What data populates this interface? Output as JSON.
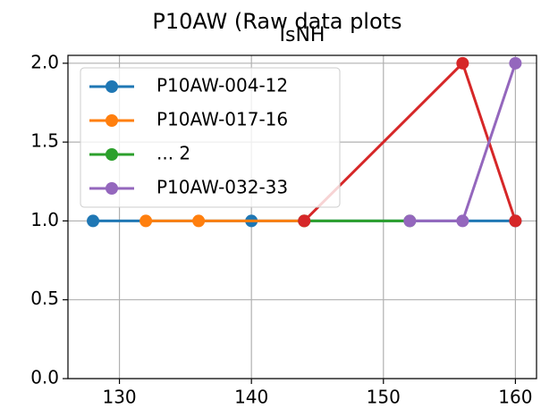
{
  "chart_data": {
    "type": "line",
    "title": "P10AW (Raw data plots",
    "subtitle": "IsNH",
    "xlim": [
      126.1,
      161.6
    ],
    "xticks": [
      130,
      140,
      150,
      160
    ],
    "ylim": [
      0,
      2.05
    ],
    "yticks": [
      {
        "value": 0,
        "label": "0.0"
      },
      {
        "value": 0.5,
        "label": "0.5"
      },
      {
        "value": 1,
        "label": "1.0"
      },
      {
        "value": 1.5,
        "label": "1.5"
      },
      {
        "value": 2,
        "label": "2.0"
      }
    ],
    "grid": true,
    "legend": "upper left",
    "series": [
      {
        "name": "P10AW-004-12",
        "color": "#1f77b4",
        "x": [
          128,
          140,
          160
        ],
        "values": [
          1,
          1,
          1
        ]
      },
      {
        "name": "P10AW-017-16",
        "color": "#ff7f0e",
        "x": [
          132,
          136,
          144
        ],
        "values": [
          1,
          1,
          1
        ]
      },
      {
        "name": "... 2",
        "color": "#2ca02c",
        "x": [
          144,
          152
        ],
        "values": [
          1,
          1
        ]
      },
      {
        "color": "#d62728",
        "x": [
          144,
          156,
          160
        ],
        "values": [
          1,
          2,
          1
        ]
      },
      {
        "name": "P10AW-032-33",
        "color": "#9467bd",
        "x": [
          152,
          156,
          160
        ],
        "values": [
          1,
          1,
          2
        ]
      }
    ]
  }
}
